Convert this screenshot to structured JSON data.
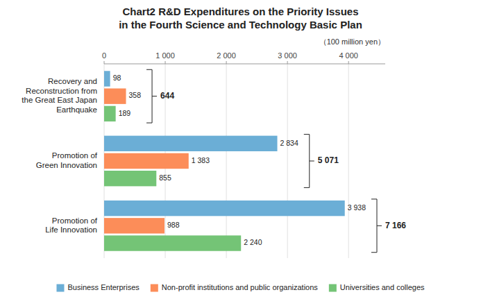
{
  "chart_data": {
    "type": "bar",
    "orientation": "horizontal",
    "title": "Chart2   R&D Expenditures on the Priority Issues",
    "subtitle": "in the Fourth Science and Technology Basic Plan",
    "xlabel": "（100 million yen）",
    "categories": [
      "Recovery and\nReconstruction from\nthe Great East Japan\nEarthquake",
      "Promotion of\nGreen Innovation",
      "Promotion of\nLife Innovation"
    ],
    "series": [
      {
        "name": "Business Enterprises",
        "color": "#6baed6",
        "values": [
          98,
          2834,
          3938
        ],
        "value_labels": [
          "98",
          "2 834",
          "3 938"
        ]
      },
      {
        "name": "Non-profit institutions and public organizations",
        "color": "#fc8d59",
        "values": [
          358,
          1383,
          988
        ],
        "value_labels": [
          "358",
          "1 383",
          "988"
        ]
      },
      {
        "name": "Universities and colleges",
        "color": "#74c476",
        "values": [
          189,
          855,
          2240
        ],
        "value_labels": [
          "189",
          "855",
          "2 240"
        ]
      }
    ],
    "totals": {
      "values": [
        644,
        5071,
        7166
      ],
      "value_labels": [
        "644",
        "5 071",
        "7 166"
      ]
    },
    "xlim": [
      0,
      4600
    ],
    "xticks": [
      0,
      {
        "value": 1000,
        "label": "1 000"
      },
      {
        "value": 2000,
        "label": "2 000"
      },
      {
        "value": 3000,
        "label": "3 000"
      },
      {
        "value": 4000,
        "label": "4 000"
      }
    ],
    "grid": true,
    "legend": "bottom",
    "data_labels": true
  }
}
